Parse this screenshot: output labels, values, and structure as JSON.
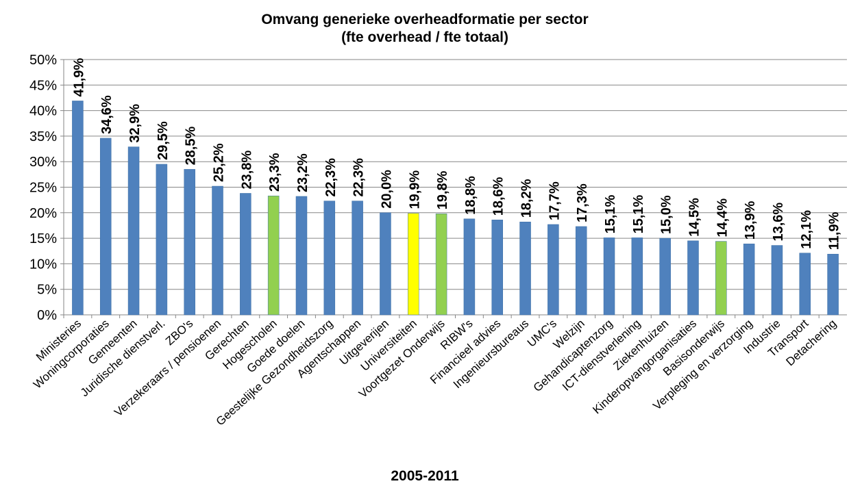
{
  "chart_data": {
    "type": "bar",
    "title": "Omvang generieke overheadformatie per sector",
    "subtitle": "(fte overhead / fte totaal)",
    "x_label": "2005-2011",
    "categories": [
      "Ministeries",
      "Woningcorporaties",
      "Gemeenten",
      "Juridische dienstverl.",
      "ZBO's",
      "Verzekeraars / pensioenen",
      "Gerechten",
      "Hogescholen",
      "Goede doelen",
      "Geestelijke Gezondheidszorg",
      "Agentschappen",
      "Uitgeverijen",
      "Universiteiten",
      "Voortgezet Onderwijs",
      "RIBW's",
      "Financieel advies",
      "Ingenieursbureaus",
      "UMC's",
      "Welzijn",
      "Gehandicaptenzorg",
      "ICT-dienstverlening",
      "Ziekenhuizen",
      "Kinderopvangorganisaties",
      "Basisonderwijs",
      "Verpleging en verzorging",
      "Industrie",
      "Transport",
      "Detachering"
    ],
    "values": [
      41.9,
      34.6,
      32.9,
      29.5,
      28.5,
      25.2,
      23.8,
      23.3,
      23.2,
      22.3,
      22.3,
      20.0,
      19.9,
      19.8,
      18.8,
      18.6,
      18.2,
      17.7,
      17.3,
      15.1,
      15.1,
      15.0,
      14.5,
      14.4,
      13.9,
      13.6,
      12.1,
      11.9
    ],
    "value_labels": [
      "41,9%",
      "34,6%",
      "32,9%",
      "29,5%",
      "28,5%",
      "25,2%",
      "23,8%",
      "23,3%",
      "23,2%",
      "22,3%",
      "22,3%",
      "20,0%",
      "19,9%",
      "19,8%",
      "18,8%",
      "18,6%",
      "18,2%",
      "17,7%",
      "17,3%",
      "15,1%",
      "15,1%",
      "15,0%",
      "14,5%",
      "14,4%",
      "13,9%",
      "13,6%",
      "12,1%",
      "11,9%"
    ],
    "colors": [
      "#4f81bd",
      "#4f81bd",
      "#4f81bd",
      "#4f81bd",
      "#4f81bd",
      "#4f81bd",
      "#4f81bd",
      "#92d050",
      "#4f81bd",
      "#4f81bd",
      "#4f81bd",
      "#4f81bd",
      "#ffff00",
      "#92d050",
      "#4f81bd",
      "#4f81bd",
      "#4f81bd",
      "#4f81bd",
      "#4f81bd",
      "#4f81bd",
      "#4f81bd",
      "#4f81bd",
      "#4f81bd",
      "#92d050",
      "#4f81bd",
      "#4f81bd",
      "#4f81bd",
      "#4f81bd"
    ],
    "ylim": [
      0,
      50
    ],
    "yticks": [
      {
        "value": 0,
        "label": "0%"
      },
      {
        "value": 5,
        "label": "5%"
      },
      {
        "value": 10,
        "label": "10%"
      },
      {
        "value": 15,
        "label": "15%"
      },
      {
        "value": 20,
        "label": "20%"
      },
      {
        "value": 25,
        "label": "25%"
      },
      {
        "value": 30,
        "label": "30%"
      },
      {
        "value": 35,
        "label": "35%"
      },
      {
        "value": 40,
        "label": "40%"
      },
      {
        "value": 45,
        "label": "45%"
      },
      {
        "value": 50,
        "label": "50%"
      }
    ],
    "grid": true
  }
}
